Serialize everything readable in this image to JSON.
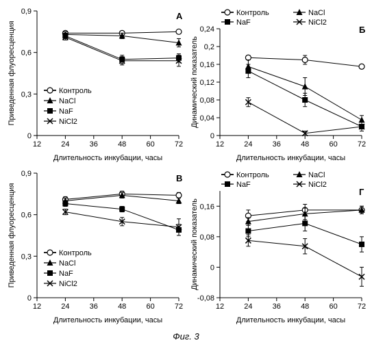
{
  "figure_caption": "Фиг. 3",
  "xlabel": "Длительность инкубации, часы",
  "ylabel_left": "Приведенная флуоресценция",
  "ylabel_right": "Динамический показатель",
  "legend": {
    "control": "Контроль",
    "nacl": "NaCl",
    "naf": "NaF",
    "nicl2": "NiCl2"
  },
  "colors": {
    "line": "#000000",
    "bg": "#ffffff"
  },
  "fontsize": {
    "tick": 11,
    "label": 11,
    "panel": 13
  },
  "markers": {
    "control": "circle-open",
    "nacl": "triangle",
    "naf": "square",
    "nicl2": "x"
  },
  "xaxis": {
    "min": 12,
    "max": 72,
    "ticks": [
      12,
      24,
      36,
      48,
      60,
      72
    ]
  },
  "panels": {
    "A": {
      "letter": "А",
      "ylim": [
        0,
        0.9
      ],
      "yticks": [
        0,
        0.3,
        0.6,
        0.9
      ],
      "legend_pos": "inside-lower-left",
      "series": {
        "control": {
          "x": [
            24,
            48,
            72
          ],
          "y": [
            0.74,
            0.74,
            0.75
          ],
          "err": [
            0.01,
            0.01,
            0.01
          ]
        },
        "nacl": {
          "x": [
            24,
            48,
            72
          ],
          "y": [
            0.73,
            0.72,
            0.67
          ],
          "err": [
            0.02,
            0.02,
            0.03
          ]
        },
        "naf": {
          "x": [
            24,
            48,
            72
          ],
          "y": [
            0.72,
            0.55,
            0.56
          ],
          "err": [
            0.02,
            0.03,
            0.03
          ]
        },
        "nicl2": {
          "x": [
            24,
            48,
            72
          ],
          "y": [
            0.71,
            0.54,
            0.54
          ],
          "err": [
            0.02,
            0.03,
            0.04
          ]
        }
      }
    },
    "B": {
      "letter": "Б",
      "ylim": [
        0,
        0.24
      ],
      "yticks": [
        0,
        0.04,
        0.08,
        0.12,
        0.16,
        0.2,
        0.24
      ],
      "legend_pos": "above",
      "series": {
        "control": {
          "x": [
            24,
            48,
            72
          ],
          "y": [
            0.175,
            0.17,
            0.155
          ],
          "err": [
            0.005,
            0.01,
            0.005
          ]
        },
        "nacl": {
          "x": [
            24,
            48,
            72
          ],
          "y": [
            0.155,
            0.11,
            0.035
          ],
          "err": [
            0.015,
            0.02,
            0.01
          ]
        },
        "naf": {
          "x": [
            24,
            48,
            72
          ],
          "y": [
            0.145,
            0.08,
            0.02
          ],
          "err": [
            0.015,
            0.015,
            0.01
          ]
        },
        "nicl2": {
          "x": [
            24,
            48,
            72
          ],
          "y": [
            0.075,
            0.005,
            0.02
          ],
          "err": [
            0.01,
            0.005,
            0.01
          ]
        }
      }
    },
    "C": {
      "letter": "В",
      "ylim": [
        0,
        0.9
      ],
      "yticks": [
        0,
        0.3,
        0.6,
        0.9
      ],
      "legend_pos": "inside-lower-left",
      "series": {
        "control": {
          "x": [
            24,
            48,
            72
          ],
          "y": [
            0.71,
            0.75,
            0.74
          ],
          "err": [
            0.02,
            0.02,
            0.02
          ]
        },
        "nacl": {
          "x": [
            24,
            48,
            72
          ],
          "y": [
            0.7,
            0.74,
            0.7
          ],
          "err": [
            0.02,
            0.02,
            0.02
          ]
        },
        "naf": {
          "x": [
            24,
            48,
            72
          ],
          "y": [
            0.68,
            0.64,
            0.49
          ],
          "err": [
            0.02,
            0.02,
            0.04
          ]
        },
        "nicl2": {
          "x": [
            24,
            48,
            72
          ],
          "y": [
            0.62,
            0.55,
            0.51
          ],
          "err": [
            0.02,
            0.03,
            0.06
          ]
        }
      }
    },
    "D": {
      "letter": "Г",
      "ylim": [
        -0.08,
        0.2
      ],
      "yticks": [
        -0.08,
        0,
        0.08,
        0.16
      ],
      "legend_pos": "above",
      "series": {
        "control": {
          "x": [
            24,
            48,
            72
          ],
          "y": [
            0.135,
            0.15,
            0.15
          ],
          "err": [
            0.015,
            0.015,
            0.01
          ]
        },
        "nacl": {
          "x": [
            24,
            48,
            72
          ],
          "y": [
            0.12,
            0.14,
            0.15
          ],
          "err": [
            0.01,
            0.015,
            0.01
          ]
        },
        "naf": {
          "x": [
            24,
            48,
            72
          ],
          "y": [
            0.095,
            0.115,
            0.06
          ],
          "err": [
            0.015,
            0.02,
            0.02
          ]
        },
        "nicl2": {
          "x": [
            24,
            48,
            72
          ],
          "y": [
            0.07,
            0.055,
            -0.025
          ],
          "err": [
            0.015,
            0.02,
            0.025
          ]
        }
      }
    }
  }
}
